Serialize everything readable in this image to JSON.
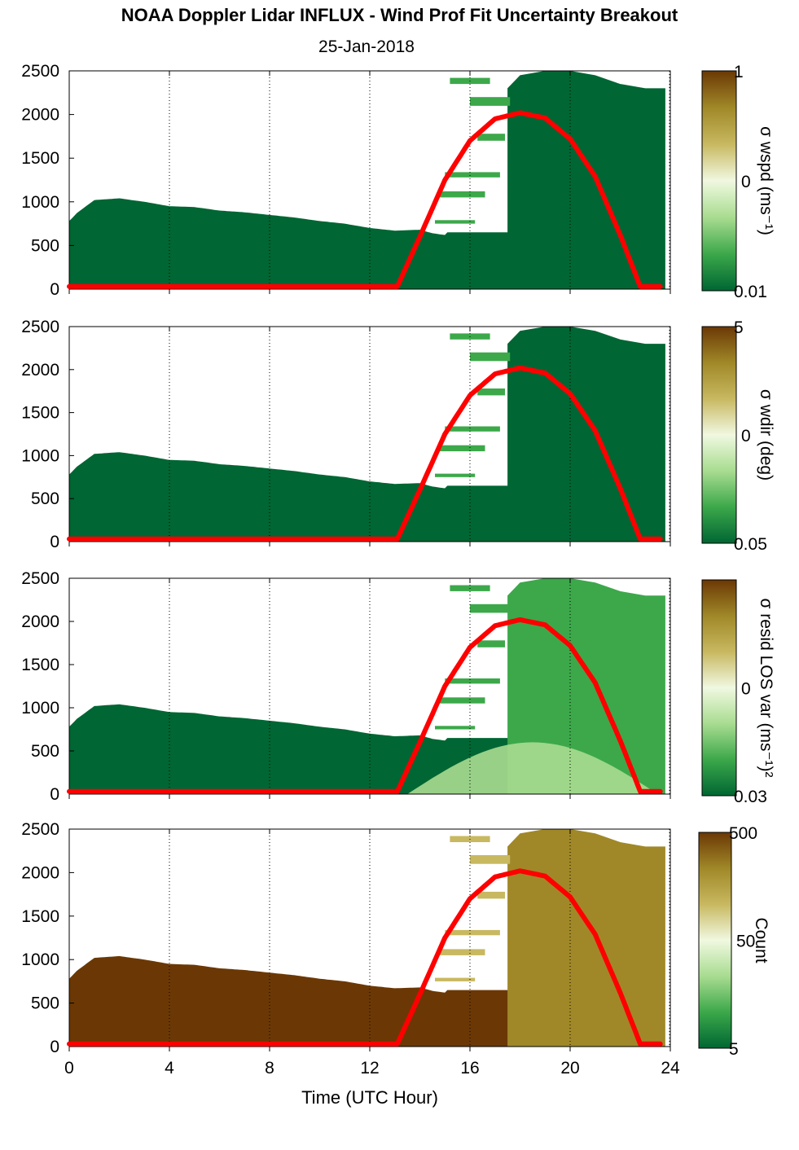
{
  "title": "NOAA Doppler Lidar INFLUX - Wind Prof Fit Uncertainty Breakout",
  "subtitle": "25-Jan-2018",
  "colors": {
    "dark_green": "#006633",
    "mid_green": "#3ca84a",
    "light_green": "#a8dc90",
    "pale": "#f0f8e0",
    "tan": "#c8b860",
    "olive": "#a08828",
    "brown": "#6b3805",
    "overlay_curve": "#ff0000"
  },
  "chart_data": [
    {
      "type": "heatmap",
      "panel": "wspd",
      "colorbar_label": "σ wspd (ms⁻¹)",
      "colorbar_ticks": [
        "1",
        "0",
        "0.01"
      ],
      "xlim": [
        0,
        24
      ],
      "ylim": [
        0,
        2500
      ],
      "yticks": [
        "0",
        "500",
        "1000",
        "1500",
        "2000",
        "2500"
      ],
      "xticks": [
        "0",
        "4",
        "8",
        "12",
        "16",
        "20",
        "24"
      ],
      "grid": "vertical dotted at 4, 8, 12, 16, 20"
    },
    {
      "type": "heatmap",
      "panel": "wdir",
      "colorbar_label": "σ wdir (deg)",
      "colorbar_ticks": [
        "5",
        "0",
        "0.05"
      ],
      "xlim": [
        0,
        24
      ],
      "ylim": [
        0,
        2500
      ],
      "yticks": [
        "0",
        "500",
        "1000",
        "1500",
        "2000",
        "2500"
      ],
      "xticks": [
        "0",
        "4",
        "8",
        "12",
        "16",
        "20",
        "24"
      ],
      "grid": "vertical dotted at 4, 8, 12, 16, 20"
    },
    {
      "type": "heatmap",
      "panel": "resid",
      "colorbar_label": "σ resid LOS var (ms⁻¹)²",
      "colorbar_ticks": [
        "",
        "0",
        "0.03"
      ],
      "xlim": [
        0,
        24
      ],
      "ylim": [
        0,
        2500
      ],
      "yticks": [
        "0",
        "500",
        "1000",
        "1500",
        "2000",
        "2500"
      ],
      "xticks": [
        "0",
        "4",
        "8",
        "12",
        "16",
        "20",
        "24"
      ],
      "grid": "vertical dotted at 4, 8, 12, 16, 20"
    },
    {
      "type": "heatmap",
      "panel": "count",
      "colorbar_label": "Count",
      "colorbar_ticks": [
        "500",
        "50",
        "5"
      ],
      "xlim": [
        0,
        24
      ],
      "ylim": [
        0,
        2500
      ],
      "yticks": [
        "0",
        "500",
        "1000",
        "1500",
        "2000",
        "2500"
      ],
      "xticks": [
        "0",
        "4",
        "8",
        "12",
        "16",
        "20",
        "24"
      ],
      "xlabel": "Time (UTC Hour)",
      "grid": "vertical dotted at 4, 8, 12, 16, 20"
    }
  ],
  "overlay_curve": {
    "description_visible": "red solar-elevation style curve",
    "x": [
      0,
      13.1,
      14,
      15,
      16,
      17,
      18,
      19,
      20,
      21,
      22,
      22.8,
      23.7
    ],
    "y": [
      30,
      30,
      600,
      1250,
      1700,
      1950,
      2020,
      1960,
      1720,
      1290,
      620,
      30,
      30
    ]
  },
  "data_regions": {
    "boundary_top": {
      "x": [
        0,
        0.3,
        1,
        2,
        3,
        4,
        5,
        6,
        7,
        8,
        9,
        10,
        11,
        12,
        13,
        14,
        14.5,
        15
      ],
      "y": [
        780,
        870,
        1020,
        1040,
        1000,
        950,
        940,
        900,
        880,
        850,
        820,
        780,
        750,
        700,
        670,
        680,
        640,
        620
      ]
    },
    "upper_blocks": [
      {
        "x0": 14.6,
        "x1": 16.2,
        "y0": 750,
        "y1": 790
      },
      {
        "x0": 14.8,
        "x1": 16.6,
        "y0": 1050,
        "y1": 1120
      },
      {
        "x0": 15.0,
        "x1": 17.2,
        "y0": 1280,
        "y1": 1340
      },
      {
        "x0": 16.3,
        "x1": 17.4,
        "y0": 1700,
        "y1": 1780
      },
      {
        "x0": 16.0,
        "x1": 17.6,
        "y0": 2100,
        "y1": 2200
      },
      {
        "x0": 15.2,
        "x1": 16.8,
        "y0": 2350,
        "y1": 2420
      }
    ],
    "right_block": {
      "x": [
        17.5,
        18.0,
        19,
        20,
        21,
        22,
        23,
        23.8
      ],
      "top": [
        2300,
        2450,
        2500,
        2500,
        2450,
        2350,
        2300,
        2300
      ]
    }
  }
}
